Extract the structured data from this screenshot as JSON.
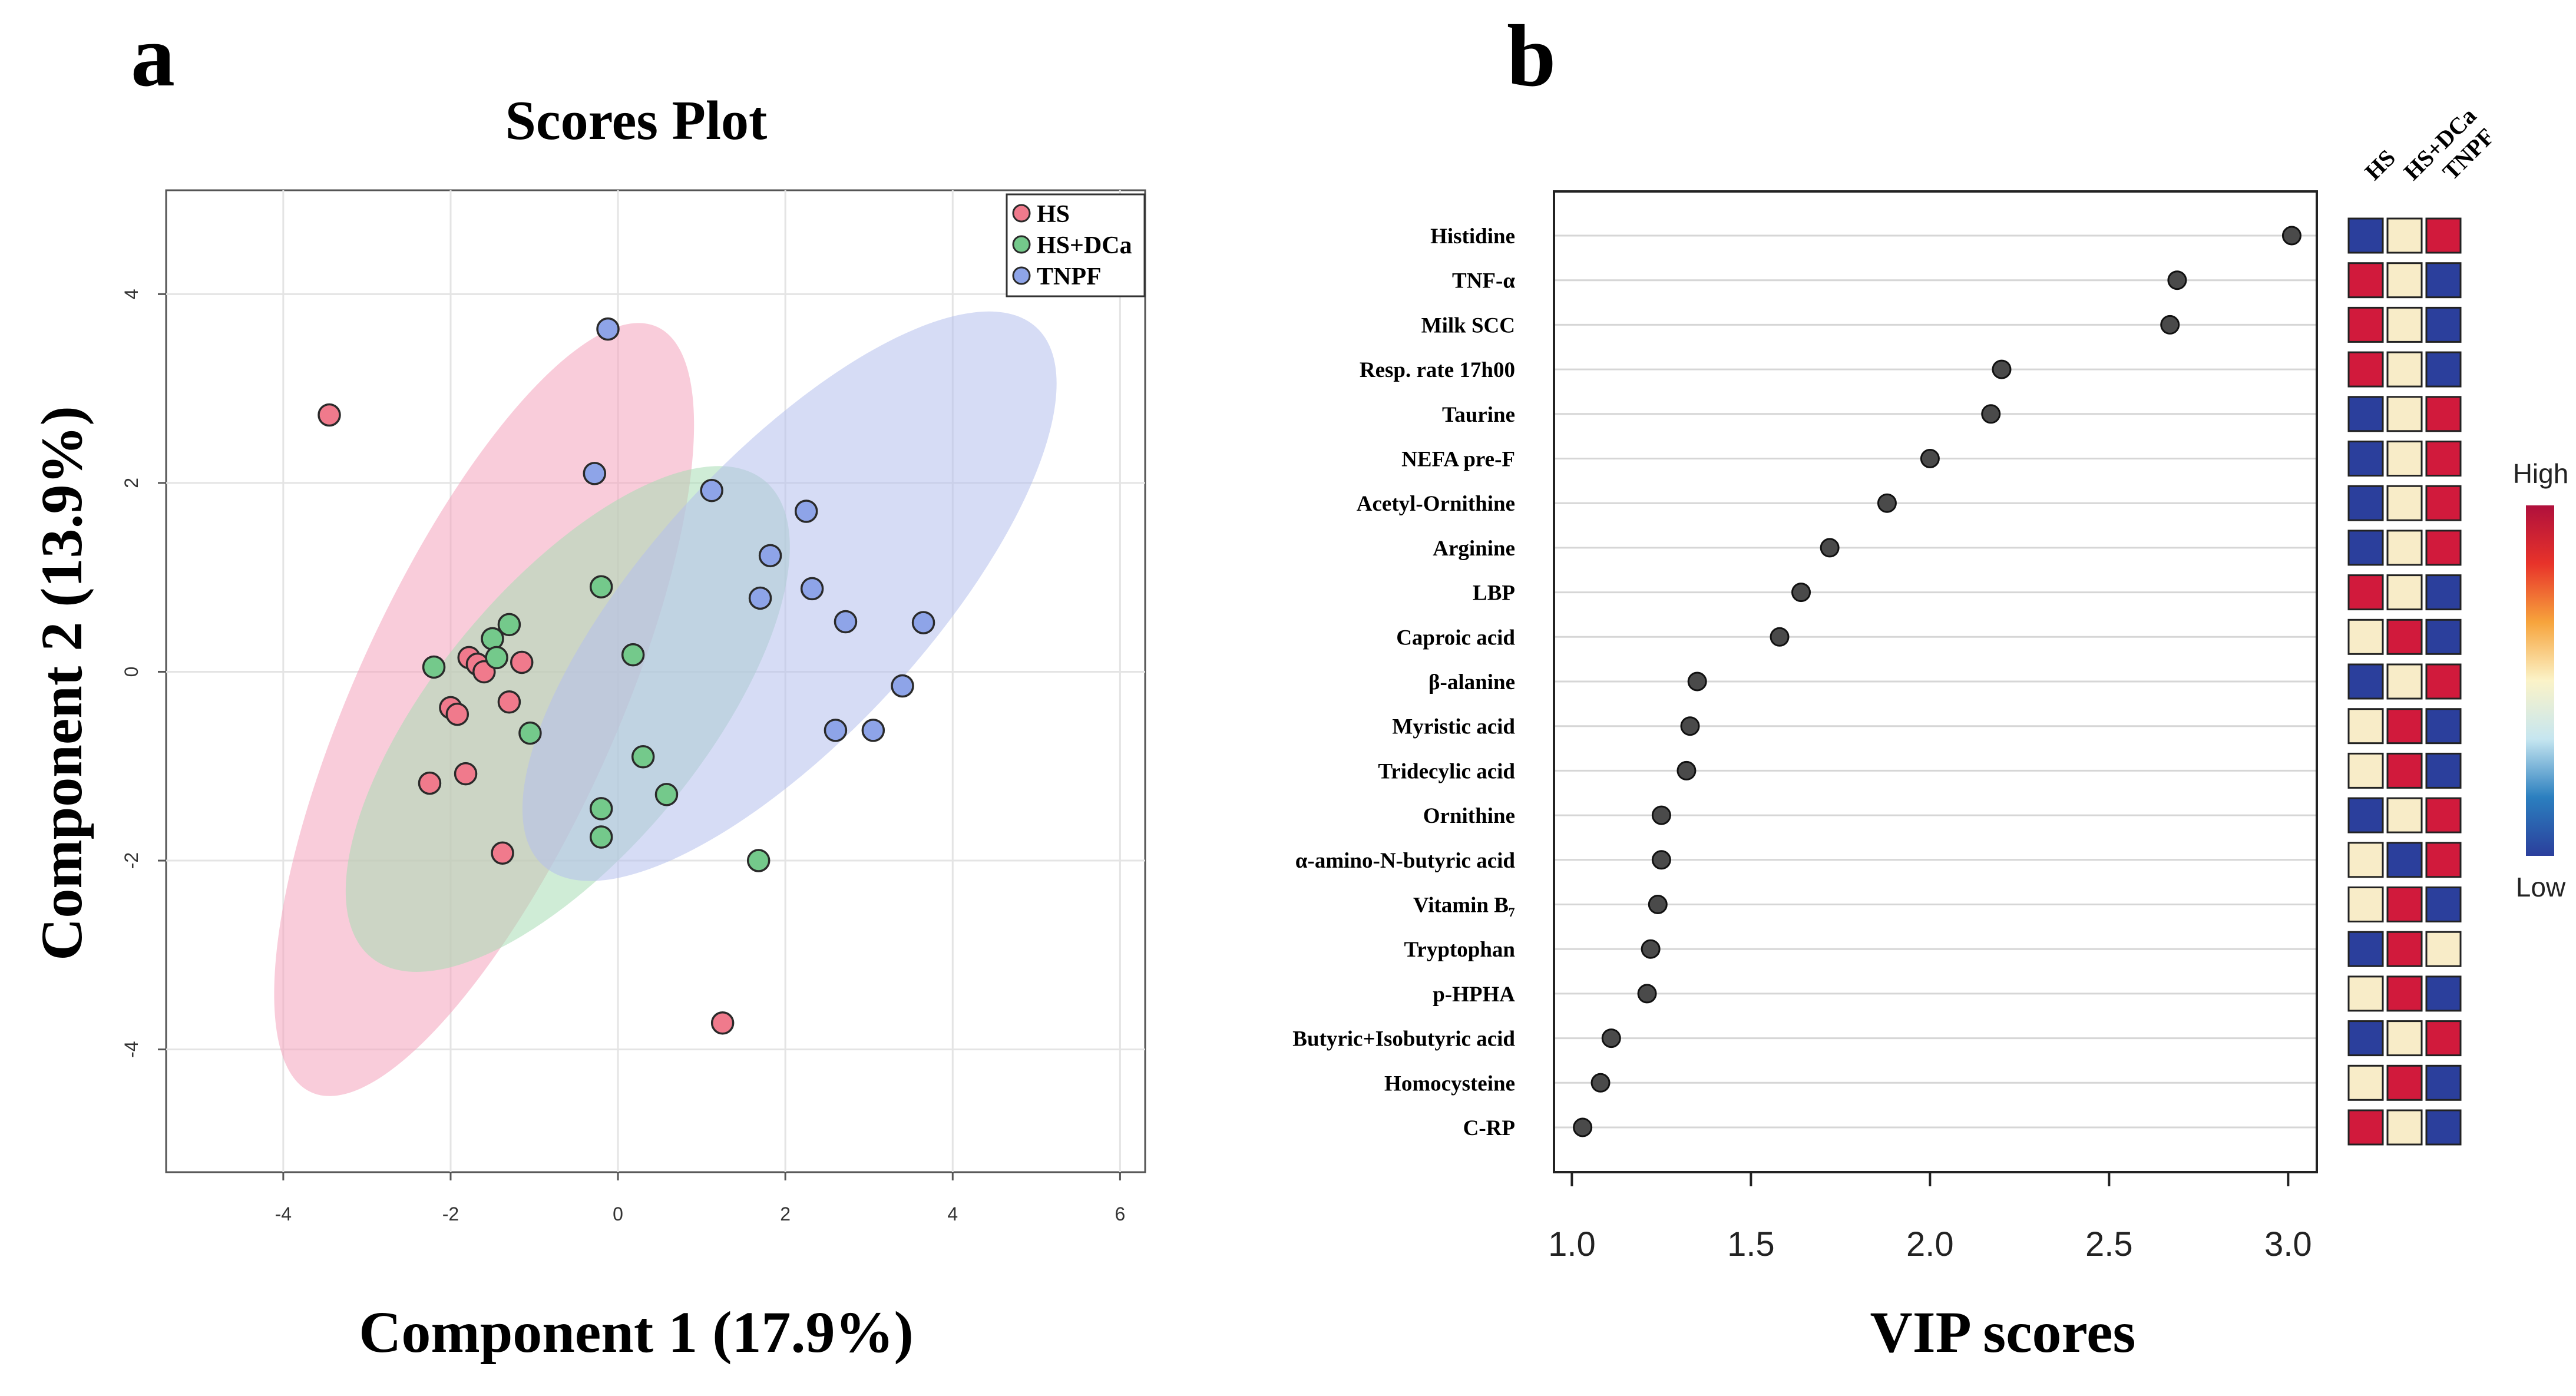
{
  "panel_a": {
    "letter": "a",
    "chart_data": {
      "type": "scatter",
      "title": "Scores Plot",
      "xlabel": "Component 1 (17.9%)",
      "ylabel": "Component 2 (13.9%)",
      "xlim": [
        -5.4,
        6.3
      ],
      "ylim": [
        -5.3,
        5.1
      ],
      "xticks": [
        -4,
        -2,
        0,
        2,
        4,
        6
      ],
      "yticks": [
        -4,
        -2,
        0,
        2,
        4
      ],
      "xtick_labels": [
        "-4",
        "-2",
        "0",
        "2",
        "4",
        "6"
      ],
      "ytick_labels": [
        "-4",
        "-2",
        "0",
        "2",
        "4"
      ],
      "grid": true,
      "legend_position": "top-right",
      "series": [
        {
          "name": "HS",
          "color": "#f07a8c",
          "ellipse_color": "#f4a3bc",
          "ellipse": {
            "cx": -1.6,
            "cy": -0.4,
            "rx": 4.55,
            "ry": 1.52,
            "angle_deg": 63
          },
          "points": [
            [
              -3.45,
              2.72
            ],
            [
              -1.78,
              0.15
            ],
            [
              -1.68,
              0.08
            ],
            [
              -1.6,
              0.0
            ],
            [
              -1.15,
              0.1
            ],
            [
              -2.0,
              -0.38
            ],
            [
              -1.92,
              -0.45
            ],
            [
              -1.3,
              -0.32
            ],
            [
              -1.82,
              -1.08
            ],
            [
              -2.25,
              -1.18
            ],
            [
              -1.38,
              -1.92
            ],
            [
              1.25,
              -3.72
            ]
          ]
        },
        {
          "name": "HS+DCa",
          "color": "#74c98b",
          "ellipse_color": "#a8dcb4",
          "ellipse": {
            "cx": -0.6,
            "cy": -0.5,
            "rx": 3.45,
            "ry": 1.5,
            "angle_deg": 47
          },
          "points": [
            [
              -2.2,
              0.05
            ],
            [
              -1.5,
              0.35
            ],
            [
              -1.3,
              0.5
            ],
            [
              -1.45,
              0.15
            ],
            [
              -1.05,
              -0.65
            ],
            [
              -0.2,
              0.9
            ],
            [
              0.18,
              0.18
            ],
            [
              0.3,
              -0.9
            ],
            [
              0.58,
              -1.3
            ],
            [
              -0.2,
              -1.45
            ],
            [
              -0.2,
              -1.75
            ],
            [
              1.68,
              -2.0
            ]
          ]
        },
        {
          "name": "TNPF",
          "color": "#8ea4e8",
          "ellipse_color": "#b4c0ec",
          "ellipse": {
            "cx": 2.05,
            "cy": 0.8,
            "rx": 4.1,
            "ry": 1.55,
            "angle_deg": 44
          },
          "points": [
            [
              -0.12,
              3.63
            ],
            [
              -0.28,
              2.1
            ],
            [
              1.12,
              1.92
            ],
            [
              2.25,
              1.7
            ],
            [
              1.82,
              1.23
            ],
            [
              1.7,
              0.78
            ],
            [
              2.32,
              0.88
            ],
            [
              2.72,
              0.53
            ],
            [
              3.65,
              0.52
            ],
            [
              3.4,
              -0.15
            ],
            [
              2.6,
              -0.62
            ],
            [
              3.05,
              -0.62
            ]
          ]
        }
      ]
    }
  },
  "panel_b": {
    "letter": "b",
    "chart_data": {
      "type": "scatter",
      "title": "",
      "xlabel": "VIP scores",
      "ylabel": "",
      "xlim": [
        0.95,
        3.08
      ],
      "xticks": [
        1.0,
        1.5,
        2.0,
        2.5,
        3.0
      ],
      "xtick_labels": [
        "1.0",
        "1.5",
        "2.0",
        "2.5",
        "3.0"
      ],
      "point_color": "#4a4a4a",
      "categories": [
        "Histidine",
        "TNF-α",
        "Milk SCC",
        "Resp. rate 17h00",
        "Taurine",
        "NEFA pre-F",
        "Acetyl-Ornithine",
        "Arginine",
        "LBP",
        "Caproic acid",
        "β-alanine",
        "Myristic acid",
        "Tridecylic acid",
        "Ornithine",
        "α-amino-N-butyric acid",
        "Vitamin B₇",
        "Tryptophan",
        "p-HPHA",
        "Butyric+Isobutyric acid",
        "Homocysteine",
        "C-RP"
      ],
      "values": [
        3.01,
        2.69,
        2.67,
        2.2,
        2.17,
        2.0,
        1.88,
        1.72,
        1.64,
        1.58,
        1.35,
        1.33,
        1.32,
        1.25,
        1.25,
        1.24,
        1.22,
        1.21,
        1.11,
        1.08,
        1.03
      ],
      "heatmap": {
        "columns": [
          "HS",
          "HS+DCa",
          "TNPF"
        ],
        "level_colors": {
          "high": "#d11a3c",
          "mid": "#f8ecc8",
          "low": "#2b3f9c"
        },
        "rows": [
          [
            "low",
            "mid",
            "high"
          ],
          [
            "high",
            "mid",
            "low"
          ],
          [
            "high",
            "mid",
            "low"
          ],
          [
            "high",
            "mid",
            "low"
          ],
          [
            "low",
            "mid",
            "high"
          ],
          [
            "low",
            "mid",
            "high"
          ],
          [
            "low",
            "mid",
            "high"
          ],
          [
            "low",
            "mid",
            "high"
          ],
          [
            "high",
            "mid",
            "low"
          ],
          [
            "mid",
            "high",
            "low"
          ],
          [
            "low",
            "mid",
            "high"
          ],
          [
            "mid",
            "high",
            "low"
          ],
          [
            "mid",
            "high",
            "low"
          ],
          [
            "low",
            "mid",
            "high"
          ],
          [
            "mid",
            "low",
            "high"
          ],
          [
            "mid",
            "high",
            "low"
          ],
          [
            "low",
            "high",
            "mid"
          ],
          [
            "mid",
            "high",
            "low"
          ],
          [
            "low",
            "mid",
            "high"
          ],
          [
            "mid",
            "high",
            "low"
          ],
          [
            "high",
            "mid",
            "low"
          ]
        ]
      },
      "colorbar": {
        "high_label": "High",
        "low_label": "Low",
        "stops": [
          "#2b3f9c",
          "#2b7fbf",
          "#c6e6f0",
          "#fbf3c8",
          "#f7a43c",
          "#e8332a",
          "#b0103c"
        ]
      }
    }
  }
}
